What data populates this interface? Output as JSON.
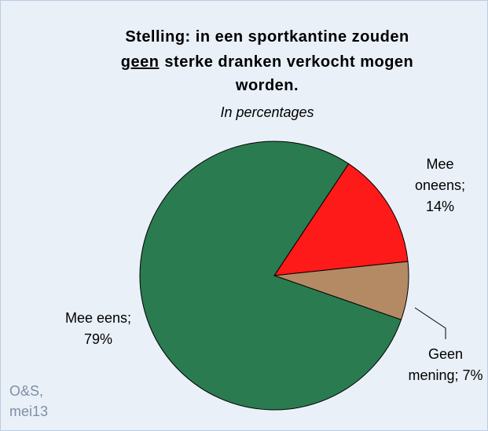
{
  "chart_data": {
    "type": "pie",
    "title": [
      [
        "Stelling: in een sportkantine zouden"
      ],
      [
        "geen",
        "sterke dranken verkocht mogen"
      ],
      [
        "worden."
      ]
    ],
    "subtitle": "In percentages",
    "values": [
      14,
      7,
      79
    ],
    "value_labels": [
      "Mee oneens; 14%",
      "Geen mening; 7%",
      "Mee eens; 79%"
    ],
    "colors": [
      "#ff1a1a",
      "#b48a64",
      "#2a7b50"
    ],
    "source": [
      "O&S,",
      "mei13"
    ]
  }
}
